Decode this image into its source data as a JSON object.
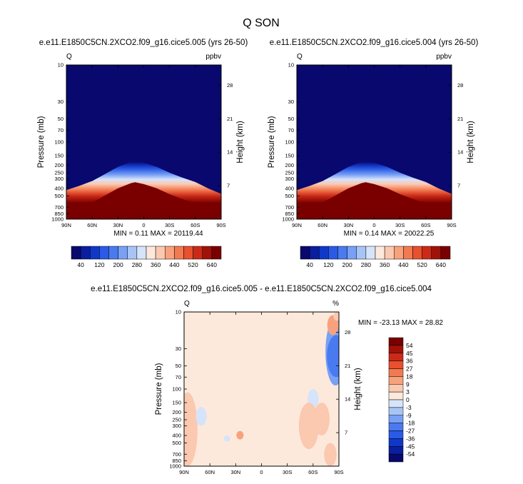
{
  "title": "Q SON",
  "panels": [
    {
      "title": "e.e11.E1850C5CN.2XCO2.f09_g16.cice5.005 (yrs 26-50)",
      "left_label": "Q",
      "right_label": "ppbv",
      "min_max": "MIN =   0.11  MAX = 20119.44"
    },
    {
      "title": "e.e11.E1850C5CN.2XCO2.f09_g16.cice5.004 (yrs 26-50)",
      "left_label": "Q",
      "right_label": "ppbv",
      "min_max": "MIN =   0.14  MAX = 20022.25"
    },
    {
      "title": "e.e11.E1850C5CN.2XCO2.f09_g16.cice5.005 - e.e11.E1850C5CN.2XCO2.f09_g16.cice5.004",
      "left_label": "Q",
      "right_label": "%",
      "min_max": "MIN = -23.13  MAX =  28.82"
    }
  ],
  "axes": {
    "ylabel": "Pressure (mb)",
    "ylabel_right": "Height (km)",
    "xticks": [
      "90N",
      "60N",
      "30N",
      "0",
      "30S",
      "60S",
      "90S"
    ],
    "yticks": [
      "10",
      "30",
      "50",
      "70",
      "100",
      "150",
      "200",
      "250",
      "300",
      "400",
      "500",
      "700",
      "850",
      "1000"
    ],
    "height_ticks": [
      "28",
      "21",
      "14",
      "7"
    ]
  },
  "colorbar_top": {
    "labels": [
      "40",
      "120",
      "200",
      "280",
      "360",
      "440",
      "520",
      "640"
    ],
    "colors": [
      "#08086e",
      "#0a1ea0",
      "#1038c8",
      "#2a5ae6",
      "#4a7af0",
      "#78a0f4",
      "#a8c4f6",
      "#d6e4fa",
      "#fde9dc",
      "#fbc8b0",
      "#f7a27c",
      "#f27a50",
      "#e8502e",
      "#cc2a18",
      "#a01208",
      "#7a0000"
    ]
  },
  "colorbar_diff": {
    "labels": [
      "54",
      "45",
      "36",
      "27",
      "18",
      "9",
      "3",
      "0",
      "-3",
      "-9",
      "-18",
      "-27",
      "-36",
      "-45",
      "-54"
    ],
    "colors": [
      "#7a0000",
      "#a01208",
      "#cc2a18",
      "#e8502e",
      "#f27a50",
      "#f7a27c",
      "#fbc8b0",
      "#fde9dc",
      "#d6e4fa",
      "#a8c4f6",
      "#78a0f4",
      "#4a7af0",
      "#2a5ae6",
      "#1038c8",
      "#0a1ea0",
      "#08086e"
    ]
  },
  "chart_data": [
    {
      "type": "heatmap",
      "title": "e.e11.E1850C5CN.2XCO2.f09_g16.cice5.005 (yrs 26-50)",
      "variable": "Q",
      "units": "ppbv",
      "x": [
        "90N",
        "60N",
        "30N",
        "0",
        "30S",
        "60S",
        "90S"
      ],
      "ylabel": "Pressure (mb)",
      "ylabel_right": "Height (km)",
      "min": 0.11,
      "max": 20119.44,
      "moist_top_pressure": [
        {
          "lat": 90,
          "p": 420
        },
        {
          "lat": 75,
          "p": 370
        },
        {
          "lat": 60,
          "p": 320
        },
        {
          "lat": 45,
          "p": 260
        },
        {
          "lat": 30,
          "p": 210
        },
        {
          "lat": 15,
          "p": 180
        },
        {
          "lat": 10,
          "p": 175
        },
        {
          "lat": 0,
          "p": 185
        },
        {
          "lat": -15,
          "p": 210
        },
        {
          "lat": -30,
          "p": 250
        },
        {
          "lat": -45,
          "p": 290
        },
        {
          "lat": -60,
          "p": 330
        },
        {
          "lat": -75,
          "p": 400
        },
        {
          "lat": -90,
          "p": 470
        }
      ]
    },
    {
      "type": "heatmap",
      "title": "e.e11.E1850C5CN.2XCO2.f09_g16.cice5.004 (yrs 26-50)",
      "variable": "Q",
      "units": "ppbv",
      "x": [
        "90N",
        "60N",
        "30N",
        "0",
        "30S",
        "60S",
        "90S"
      ],
      "ylabel": "Pressure (mb)",
      "ylabel_right": "Height (km)",
      "min": 0.14,
      "max": 20022.25,
      "moist_top_pressure": [
        {
          "lat": 90,
          "p": 420
        },
        {
          "lat": 75,
          "p": 370
        },
        {
          "lat": 60,
          "p": 320
        },
        {
          "lat": 45,
          "p": 260
        },
        {
          "lat": 30,
          "p": 210
        },
        {
          "lat": 15,
          "p": 180
        },
        {
          "lat": 10,
          "p": 175
        },
        {
          "lat": 0,
          "p": 185
        },
        {
          "lat": -15,
          "p": 210
        },
        {
          "lat": -30,
          "p": 250
        },
        {
          "lat": -45,
          "p": 290
        },
        {
          "lat": -60,
          "p": 330
        },
        {
          "lat": -75,
          "p": 400
        },
        {
          "lat": -90,
          "p": 470
        }
      ]
    },
    {
      "type": "heatmap",
      "title": "e.e11.E1850C5CN.2XCO2.f09_g16.cice5.005 - e.e11.E1850C5CN.2XCO2.f09_g16.cice5.004",
      "variable": "Q",
      "units": "%",
      "x": [
        "90N",
        "60N",
        "30N",
        "0",
        "30S",
        "60S",
        "90S"
      ],
      "ylabel": "Pressure (mb)",
      "ylabel_right": "Height (km)",
      "min": -23.13,
      "max": 28.82,
      "background_value": 0,
      "anomalies": [
        {
          "lat": -86,
          "p_from": 12,
          "p_to": 90,
          "value": -18
        },
        {
          "lat": -87,
          "p_from": 20,
          "p_to": 70,
          "value": -27
        },
        {
          "lat": -83,
          "p_from": 11,
          "p_to": 20,
          "value": 9
        },
        {
          "lat": -88,
          "p_from": 10,
          "p_to": 13,
          "value": 3
        },
        {
          "lat": -60,
          "p_from": 100,
          "p_to": 180,
          "value": -3
        },
        {
          "lat": -70,
          "p_from": 150,
          "p_to": 400,
          "value": 3
        },
        {
          "lat": 86,
          "p_from": 110,
          "p_to": 1000,
          "value": 3
        },
        {
          "lat": 70,
          "p_from": 170,
          "p_to": 300,
          "value": -3
        },
        {
          "lat": 25,
          "p_from": 350,
          "p_to": 450,
          "value": 9
        },
        {
          "lat": 40,
          "p_from": 400,
          "p_to": 480,
          "value": -3
        },
        {
          "lat": -80,
          "p_from": 500,
          "p_to": 1000,
          "value": 3
        },
        {
          "lat": -55,
          "p_from": 150,
          "p_to": 600,
          "value": 3
        }
      ]
    }
  ]
}
